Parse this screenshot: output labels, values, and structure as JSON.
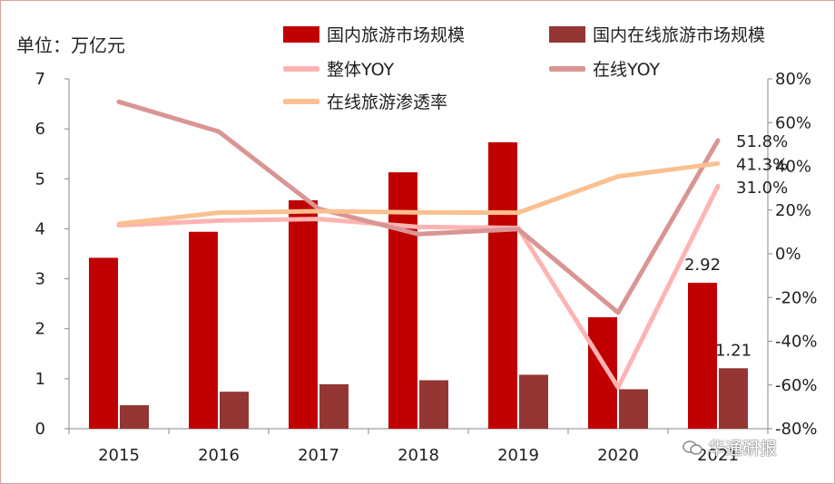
{
  "chart_data": {
    "type": "bar",
    "unit_label": "单位：万亿元",
    "categories": [
      "2015",
      "2016",
      "2017",
      "2018",
      "2019",
      "2020",
      "2021"
    ],
    "bar_series": [
      {
        "name": "国内旅游市场规模",
        "color": "#C00000",
        "values": [
          3.42,
          3.94,
          4.57,
          5.13,
          5.73,
          2.23,
          2.92
        ]
      },
      {
        "name": "国内在线旅游市场规模",
        "color": "#943634",
        "values": [
          0.47,
          0.74,
          0.89,
          0.97,
          1.08,
          0.79,
          1.21
        ]
      }
    ],
    "line_series": [
      {
        "name": "整体YOY",
        "color": "#FFB3B3",
        "values": [
          13.0,
          15.2,
          15.9,
          12.3,
          11.8,
          -61.1,
          31.0
        ]
      },
      {
        "name": "在线YOY",
        "color": "#D99594",
        "values": [
          69.5,
          55.9,
          20.6,
          9.0,
          11.3,
          -26.9,
          51.8
        ]
      },
      {
        "name": "在线旅游渗透率",
        "color": "#FAC090",
        "values": [
          13.7,
          18.8,
          19.5,
          18.9,
          18.8,
          35.4,
          41.3
        ]
      }
    ],
    "y_left": {
      "min": 0,
      "max": 7,
      "ticks": [
        "0",
        "1",
        "2",
        "3",
        "4",
        "5",
        "6",
        "7"
      ]
    },
    "y_right": {
      "min": -80,
      "max": 80,
      "ticks": [
        "-80%",
        "-60%",
        "-40%",
        "-20%",
        "0%",
        "20%",
        "40%",
        "60%",
        "80%"
      ]
    },
    "data_labels": {
      "bar_2021_total": "2.92",
      "bar_2021_online": "1.21",
      "online_yoy_2021": "51.8%",
      "penetration_2021": "41.3%",
      "overall_yoy_2021": "31.0%"
    },
    "grid": false,
    "legend_position": "top-right"
  },
  "watermark": "华通研报"
}
